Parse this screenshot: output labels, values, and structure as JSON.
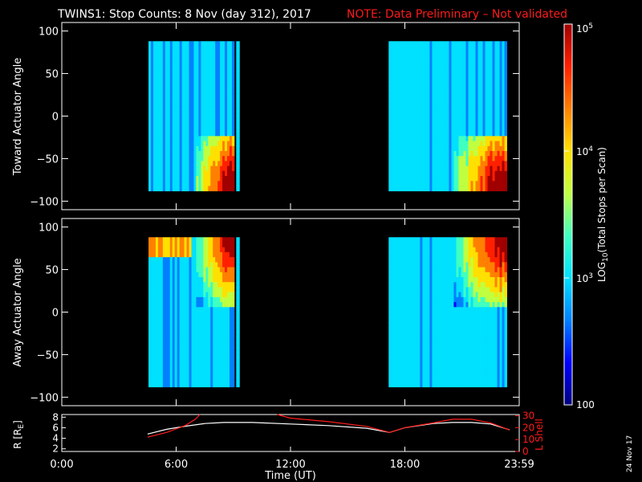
{
  "title": {
    "main": "TWINS1: Stop Counts:  8 Nov (day 312), 2017",
    "note": "NOTE: Data Preliminary – Not validated"
  },
  "chart_data": [
    {
      "type": "heatmap",
      "ylabel": "Toward Actuator Angle",
      "ylim": [
        -110,
        110
      ],
      "y_ticks": [
        "100",
        "50",
        "0",
        "−50",
        "−100"
      ],
      "y_tick_values": [
        100,
        50,
        0,
        -50,
        -100
      ],
      "xlim": [
        0,
        24
      ],
      "x_ticks": [
        0,
        6,
        12,
        18,
        24
      ],
      "data_blocks": [
        {
          "start_hr": 4.55,
          "end_hr": 9.05,
          "angle_range": [
            -88,
            88
          ]
        },
        {
          "start_hr": 9.15,
          "end_hr": 9.32,
          "angle_range": [
            -88,
            88
          ]
        },
        {
          "start_hr": 17.15,
          "end_hr": 23.35,
          "angle_range": [
            -88,
            88
          ]
        }
      ],
      "features": "high counts (red/orange) concentrated near -90 deg late in each data block"
    },
    {
      "type": "heatmap",
      "ylabel": "Away Actuator Angle",
      "ylim": [
        -110,
        110
      ],
      "y_ticks": [
        "100",
        "50",
        "0",
        "−50",
        "−100"
      ],
      "y_tick_values": [
        100,
        50,
        0,
        -50,
        -100
      ],
      "xlim": [
        0,
        24
      ],
      "x_ticks": [
        0,
        6,
        12,
        18,
        24
      ],
      "data_blocks": [
        {
          "start_hr": 4.55,
          "end_hr": 9.05,
          "angle_range": [
            -88,
            88
          ]
        },
        {
          "start_hr": 9.15,
          "end_hr": 9.32,
          "angle_range": [
            -88,
            88
          ]
        },
        {
          "start_hr": 17.15,
          "end_hr": 23.35,
          "angle_range": [
            -88,
            88
          ]
        }
      ],
      "features": "high counts (red/orange) concentrated near +90 deg"
    },
    {
      "type": "line",
      "xlabel": "Time (UT)",
      "x_tick_labels": [
        "0:00",
        "6:00",
        "12:00",
        "18:00",
        "23:59"
      ],
      "x_tick_values": [
        0,
        6,
        12,
        18,
        24
      ],
      "ylabel_left": "R [R",
      "ylabel_left_sub": "E",
      "ylabel_left_end": "]",
      "ylim_left": [
        1.5,
        8.5
      ],
      "y_ticks_left": [
        "8",
        "6",
        "4",
        "2"
      ],
      "y_tick_values_left": [
        8,
        6,
        4,
        2
      ],
      "ylabel_right": "L Shell",
      "ylim_right": [
        0,
        31
      ],
      "y_ticks_right": [
        "30",
        "20",
        "10",
        "0"
      ],
      "y_tick_values_right": [
        30,
        20,
        10,
        0
      ],
      "series": [
        {
          "color": "#ffffff",
          "axis": "left",
          "x": [
            4.5,
            5.5,
            6.5,
            7.5,
            8.5,
            10,
            12,
            14,
            16,
            17.2,
            18,
            19.5,
            20.5,
            21.5,
            22.5,
            23.5
          ],
          "y": [
            4.8,
            5.7,
            6.3,
            6.8,
            7.0,
            7.0,
            6.7,
            6.4,
            5.9,
            5.1,
            6.0,
            6.8,
            7.0,
            7.0,
            6.7,
            5.6
          ]
        },
        {
          "color": "#ff1a1a",
          "axis": "right",
          "x": [
            4.5,
            5.5,
            6.5,
            7,
            7.25,
            null,
            11.3,
            12,
            14,
            16,
            17.2,
            18,
            19.5,
            20.5,
            21.5,
            22.5,
            23.5
          ],
          "y": [
            12,
            16,
            22,
            27,
            31,
            null,
            31,
            28,
            25,
            21,
            16,
            20,
            24,
            27,
            27,
            24,
            18
          ]
        }
      ]
    }
  ],
  "colorbar": {
    "label_pre": "LOG",
    "label_sub": "10",
    "label_post": "(Total Stops per Scan)",
    "ticks": [
      {
        "base": "10",
        "exp": "5",
        "value": 100000
      },
      {
        "base": "10",
        "exp": "4",
        "value": 10000
      },
      {
        "base": "10",
        "exp": "3",
        "value": 1000
      },
      {
        "base": "100",
        "exp": "",
        "value": 100
      }
    ]
  },
  "date_stamp": "24 Nov 17",
  "colors": {
    "axis": "#ffffff",
    "background": "#000000",
    "note": "#ff1a1a",
    "scale": [
      "#00007f",
      "#0000ff",
      "#0080ff",
      "#00e0ff",
      "#40ffc0",
      "#c0ff40",
      "#ffe000",
      "#ff8000",
      "#ff2000",
      "#a00000"
    ]
  }
}
